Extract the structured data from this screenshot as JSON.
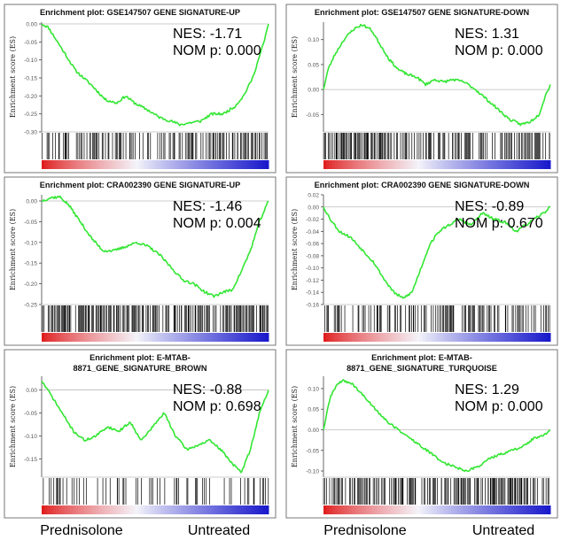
{
  "figure": {
    "group_labels": [
      "Prednisolone",
      "Untreated",
      "Prednisolone",
      "Untreated"
    ],
    "colors": {
      "curve": "#33e633",
      "panel_border": "#777777",
      "axis": "#444444",
      "tick_text": "#555555",
      "hit_bars": "#000000",
      "heatmap_red": "#e01e1e",
      "heatmap_white": "#f4f4fa",
      "heatmap_blue": "#1a1acc"
    }
  },
  "chart_data": [
    {
      "type": "line",
      "title_lines": [
        "Enrichment plot: GSE147507 GENE SIGNATURE-UP"
      ],
      "ylabel": "Enrichment score (ES)",
      "ylim": [
        -0.3,
        0.005
      ],
      "yticks": [
        0.0,
        -0.05,
        -0.1,
        -0.15,
        -0.2,
        -0.25,
        -0.3
      ],
      "tick_format": "0.00",
      "baseline": 0,
      "annotation": {
        "nes": "NES: -1.71",
        "pval": "NOM p: 0.000"
      },
      "es_profile": [
        [
          0,
          0.0
        ],
        [
          0.03,
          -0.01
        ],
        [
          0.08,
          -0.06
        ],
        [
          0.15,
          -0.13
        ],
        [
          0.22,
          -0.17
        ],
        [
          0.28,
          -0.21
        ],
        [
          0.33,
          -0.22
        ],
        [
          0.37,
          -0.2
        ],
        [
          0.41,
          -0.22
        ],
        [
          0.47,
          -0.24
        ],
        [
          0.52,
          -0.26
        ],
        [
          0.57,
          -0.27
        ],
        [
          0.61,
          -0.28
        ],
        [
          0.65,
          -0.275
        ],
        [
          0.7,
          -0.27
        ],
        [
          0.75,
          -0.25
        ],
        [
          0.8,
          -0.25
        ],
        [
          0.85,
          -0.23
        ],
        [
          0.89,
          -0.2
        ],
        [
          0.93,
          -0.15
        ],
        [
          0.96,
          -0.09
        ],
        [
          0.98,
          -0.05
        ],
        [
          1.0,
          0.0
        ]
      ],
      "hit_density": [
        [
          0,
          0.55
        ],
        [
          0.2,
          0.75
        ],
        [
          0.4,
          0.55
        ],
        [
          0.6,
          0.6
        ],
        [
          0.8,
          0.8
        ],
        [
          1,
          0.9
        ]
      ],
      "seed": 11
    },
    {
      "type": "line",
      "title_lines": [
        "Enrichment plot: GSE147507 GENE SIGNATURE-DOWN"
      ],
      "ylabel": "Enrichment score (ES)",
      "ylim": [
        -0.085,
        0.135
      ],
      "yticks": [
        0.1,
        0.05,
        0.0,
        -0.05
      ],
      "tick_format": "0.00",
      "baseline": 0,
      "annotation": {
        "nes": "NES: 1.31",
        "pval": "NOM p: 0.000"
      },
      "es_profile": [
        [
          0,
          0.0
        ],
        [
          0.02,
          0.04
        ],
        [
          0.05,
          0.07
        ],
        [
          0.09,
          0.1
        ],
        [
          0.13,
          0.12
        ],
        [
          0.17,
          0.13
        ],
        [
          0.21,
          0.12
        ],
        [
          0.25,
          0.09
        ],
        [
          0.29,
          0.06
        ],
        [
          0.33,
          0.04
        ],
        [
          0.37,
          0.03
        ],
        [
          0.41,
          0.025
        ],
        [
          0.45,
          0.01
        ],
        [
          0.49,
          0.02
        ],
        [
          0.53,
          0.015
        ],
        [
          0.57,
          0.02
        ],
        [
          0.62,
          0.015
        ],
        [
          0.67,
          0.0
        ],
        [
          0.72,
          -0.02
        ],
        [
          0.77,
          -0.04
        ],
        [
          0.82,
          -0.06
        ],
        [
          0.87,
          -0.07
        ],
        [
          0.91,
          -0.065
        ],
        [
          0.95,
          -0.05
        ],
        [
          0.98,
          -0.01
        ],
        [
          1.0,
          0.01
        ]
      ],
      "hit_density": [
        [
          0,
          1.0
        ],
        [
          0.2,
          0.95
        ],
        [
          0.4,
          0.8
        ],
        [
          0.6,
          0.85
        ],
        [
          0.8,
          0.9
        ],
        [
          1,
          0.9
        ]
      ],
      "seed": 23
    },
    {
      "type": "line",
      "title_lines": [
        "Enrichment plot: CRA002390 GENE SIGNATURE-UP"
      ],
      "ylabel": "Enrichment score (ES)",
      "ylim": [
        -0.25,
        0.015
      ],
      "yticks": [
        0.0,
        -0.05,
        -0.1,
        -0.15,
        -0.2,
        -0.25
      ],
      "tick_format": "0.00",
      "baseline": 0,
      "annotation": {
        "nes": "NES: -1.46",
        "pval": "NOM p: 0.004"
      },
      "es_profile": [
        [
          0,
          0.0
        ],
        [
          0.04,
          0.008
        ],
        [
          0.08,
          0.01
        ],
        [
          0.12,
          -0.01
        ],
        [
          0.17,
          -0.05
        ],
        [
          0.22,
          -0.09
        ],
        [
          0.27,
          -0.12
        ],
        [
          0.32,
          -0.12
        ],
        [
          0.37,
          -0.11
        ],
        [
          0.42,
          -0.1
        ],
        [
          0.47,
          -0.11
        ],
        [
          0.52,
          -0.13
        ],
        [
          0.57,
          -0.16
        ],
        [
          0.62,
          -0.19
        ],
        [
          0.67,
          -0.2
        ],
        [
          0.72,
          -0.22
        ],
        [
          0.76,
          -0.23
        ],
        [
          0.8,
          -0.22
        ],
        [
          0.84,
          -0.215
        ],
        [
          0.88,
          -0.17
        ],
        [
          0.92,
          -0.12
        ],
        [
          0.96,
          -0.05
        ],
        [
          1.0,
          0.0
        ]
      ],
      "hit_density": [
        [
          0,
          1.0
        ],
        [
          0.3,
          0.9
        ],
        [
          0.6,
          0.85
        ],
        [
          0.8,
          0.9
        ],
        [
          1,
          0.95
        ]
      ],
      "seed": 37
    },
    {
      "type": "line",
      "title_lines": [
        "Enrichment plot: CRA002390 GENE SIGNATURE-DOWN"
      ],
      "ylabel": "Enrichment score (ES)",
      "ylim": [
        -0.16,
        0.02
      ],
      "yticks": [
        0.02,
        0.0,
        -0.02,
        -0.04,
        -0.06,
        -0.08,
        -0.1,
        -0.12,
        -0.14,
        -0.16
      ],
      "tick_format": "0.00",
      "baseline": 0,
      "annotation": {
        "nes": "NES: -0.89",
        "pval": "NOM p: 0.670"
      },
      "es_profile": [
        [
          0,
          0.0
        ],
        [
          0.03,
          -0.02
        ],
        [
          0.07,
          -0.04
        ],
        [
          0.12,
          -0.05
        ],
        [
          0.17,
          -0.07
        ],
        [
          0.22,
          -0.09
        ],
        [
          0.27,
          -0.12
        ],
        [
          0.31,
          -0.14
        ],
        [
          0.35,
          -0.15
        ],
        [
          0.39,
          -0.14
        ],
        [
          0.43,
          -0.1
        ],
        [
          0.47,
          -0.06
        ],
        [
          0.51,
          -0.04
        ],
        [
          0.55,
          -0.03
        ],
        [
          0.6,
          -0.02
        ],
        [
          0.65,
          -0.03
        ],
        [
          0.7,
          -0.01
        ],
        [
          0.75,
          -0.02
        ],
        [
          0.8,
          -0.025
        ],
        [
          0.85,
          -0.04
        ],
        [
          0.89,
          -0.03
        ],
        [
          0.93,
          -0.02
        ],
        [
          0.97,
          -0.01
        ],
        [
          1.0,
          0.0
        ]
      ],
      "hit_density": [
        [
          0,
          0.6
        ],
        [
          0.3,
          0.65
        ],
        [
          0.5,
          0.8
        ],
        [
          0.7,
          0.85
        ],
        [
          1,
          0.55
        ]
      ],
      "seed": 53
    },
    {
      "type": "line",
      "title_lines": [
        "Enrichment plot: E-MTAB-",
        "8871_GENE_SIGNATURE_BROWN"
      ],
      "ylabel": "Enrichment score (ES)",
      "ylim": [
        -0.19,
        0.03
      ],
      "yticks": [
        0.0,
        -0.05,
        -0.1,
        -0.15
      ],
      "tick_format": "0.00",
      "baseline": 0,
      "annotation": {
        "nes": "NES: -0.88",
        "pval": "NOM p: 0.698"
      },
      "es_profile": [
        [
          0,
          0.02
        ],
        [
          0.04,
          -0.01
        ],
        [
          0.09,
          -0.05
        ],
        [
          0.14,
          -0.09
        ],
        [
          0.19,
          -0.11
        ],
        [
          0.24,
          -0.1
        ],
        [
          0.29,
          -0.08
        ],
        [
          0.34,
          -0.09
        ],
        [
          0.39,
          -0.07
        ],
        [
          0.44,
          -0.11
        ],
        [
          0.49,
          -0.08
        ],
        [
          0.54,
          -0.05
        ],
        [
          0.59,
          -0.1
        ],
        [
          0.64,
          -0.13
        ],
        [
          0.69,
          -0.12
        ],
        [
          0.74,
          -0.11
        ],
        [
          0.79,
          -0.13
        ],
        [
          0.84,
          -0.16
        ],
        [
          0.88,
          -0.18
        ],
        [
          0.92,
          -0.13
        ],
        [
          0.96,
          -0.05
        ],
        [
          1.0,
          0.0
        ]
      ],
      "hit_density": [
        [
          0,
          0.35
        ],
        [
          0.3,
          0.3
        ],
        [
          0.5,
          0.35
        ],
        [
          0.7,
          0.4
        ],
        [
          1,
          0.45
        ]
      ],
      "seed": 71
    },
    {
      "type": "line",
      "title_lines": [
        "Enrichment plot: E-MTAB-",
        "8871_GENE_SIGNATURE_TURQUOISE"
      ],
      "ylabel": "Enrichment score (ES)",
      "ylim": [
        -0.115,
        0.13
      ],
      "yticks": [
        0.1,
        0.05,
        0.0,
        -0.05,
        -0.1
      ],
      "tick_format": "0.00",
      "baseline": 0,
      "annotation": {
        "nes": "NES: 1.29",
        "pval": "NOM p: 0.000"
      },
      "es_profile": [
        [
          0,
          0.0
        ],
        [
          0.03,
          0.08
        ],
        [
          0.06,
          0.11
        ],
        [
          0.09,
          0.12
        ],
        [
          0.13,
          0.11
        ],
        [
          0.18,
          0.08
        ],
        [
          0.23,
          0.05
        ],
        [
          0.28,
          0.02
        ],
        [
          0.33,
          0.0
        ],
        [
          0.38,
          -0.02
        ],
        [
          0.43,
          -0.04
        ],
        [
          0.48,
          -0.06
        ],
        [
          0.53,
          -0.08
        ],
        [
          0.58,
          -0.09
        ],
        [
          0.63,
          -0.1
        ],
        [
          0.68,
          -0.09
        ],
        [
          0.73,
          -0.07
        ],
        [
          0.78,
          -0.06
        ],
        [
          0.83,
          -0.05
        ],
        [
          0.88,
          -0.04
        ],
        [
          0.93,
          -0.02
        ],
        [
          0.97,
          -0.015
        ],
        [
          1.0,
          0.0
        ]
      ],
      "hit_density": [
        [
          0,
          0.85
        ],
        [
          0.3,
          0.8
        ],
        [
          0.6,
          0.85
        ],
        [
          1,
          0.95
        ]
      ],
      "seed": 89
    }
  ]
}
